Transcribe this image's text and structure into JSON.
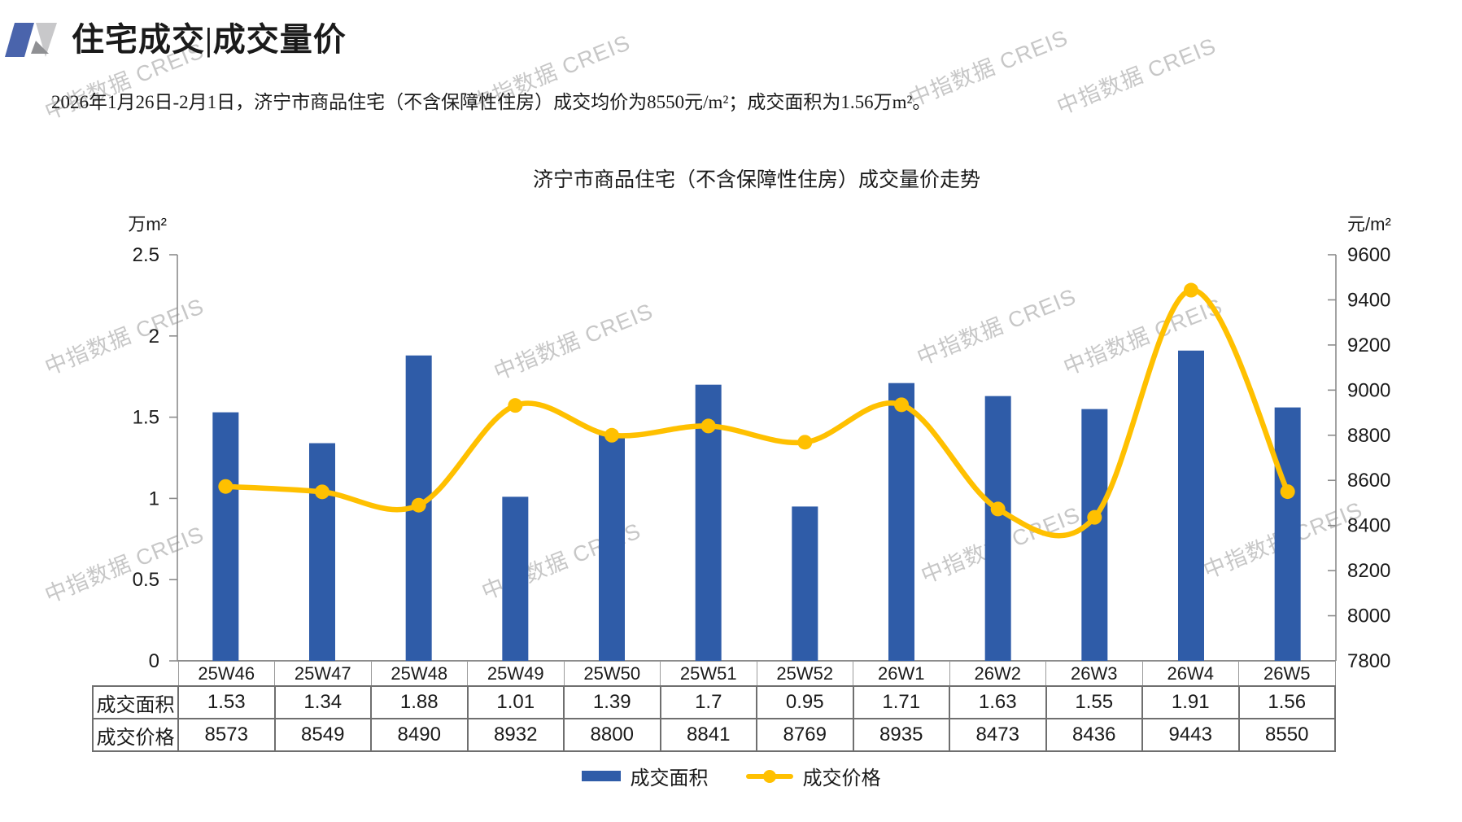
{
  "header": {
    "title": "住宅成交|成交量价"
  },
  "summary": "2026年1月26日-2月1日，济宁市商品住宅（不含保障性住房）成交均价为8550元/m²；成交面积为1.56万m²。",
  "watermark_text": "中指数据 CREIS",
  "chart_data": {
    "type": "bar+line",
    "title": "济宁市商品住宅（不含保障性住房）成交量价走势",
    "categories": [
      "25W46",
      "25W47",
      "25W48",
      "25W49",
      "25W50",
      "25W51",
      "25W52",
      "26W1",
      "26W2",
      "26W3",
      "26W4",
      "26W5"
    ],
    "series": [
      {
        "name": "成交面积",
        "type": "bar",
        "axis": "left",
        "color": "#2F5CA8",
        "values": [
          1.53,
          1.34,
          1.88,
          1.01,
          1.39,
          1.7,
          0.95,
          1.71,
          1.63,
          1.55,
          1.91,
          1.56
        ]
      },
      {
        "name": "成交价格",
        "type": "line",
        "axis": "right",
        "color": "#FFC000",
        "values": [
          8573,
          8549,
          8490,
          8932,
          8800,
          8841,
          8769,
          8935,
          8473,
          8436,
          9443,
          8550
        ]
      }
    ],
    "left_axis": {
      "unit": "万m²",
      "min": 0,
      "max": 2.5,
      "tick_labels": [
        "0",
        "0.5",
        "1",
        "1.5",
        "2",
        "2.5"
      ]
    },
    "right_axis": {
      "unit": "元/m²",
      "min": 7800,
      "max": 9600,
      "tick_labels": [
        "7800",
        "8000",
        "8200",
        "8400",
        "8600",
        "8800",
        "9000",
        "9200",
        "9400",
        "9600"
      ]
    },
    "grid": false,
    "legend_position": "bottom"
  },
  "table": {
    "row_headers": [
      "成交面积",
      "成交价格"
    ],
    "rows": [
      [
        "1.53",
        "1.34",
        "1.88",
        "1.01",
        "1.39",
        "1.7",
        "0.95",
        "1.71",
        "1.63",
        "1.55",
        "1.91",
        "1.56"
      ],
      [
        "8573",
        "8549",
        "8490",
        "8932",
        "8800",
        "8841",
        "8769",
        "8935",
        "8473",
        "8436",
        "9443",
        "8550"
      ]
    ]
  },
  "legend": {
    "items": [
      {
        "label": "成交面积",
        "marker": "bar-swatch",
        "color": "#2F5CA8"
      },
      {
        "label": "成交价格",
        "marker": "line-marker",
        "color": "#FFC000"
      }
    ]
  }
}
